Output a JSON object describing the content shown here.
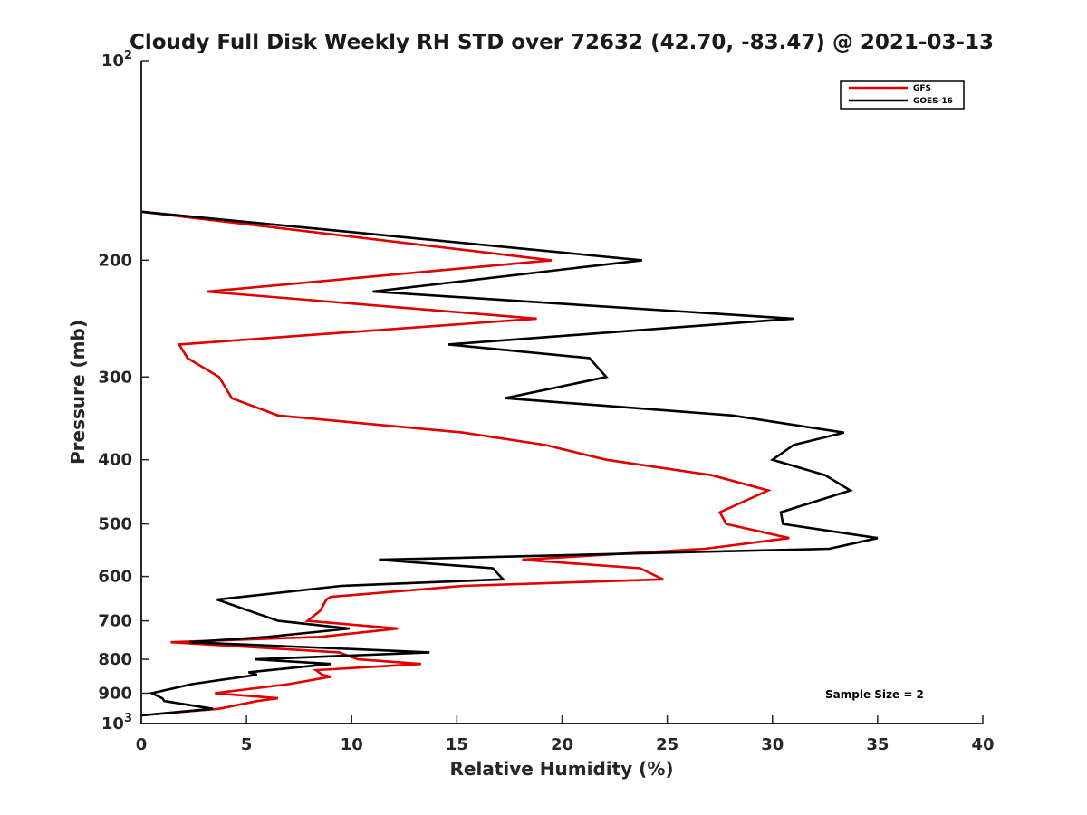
{
  "chart_data": {
    "type": "line",
    "title": "Cloudy Full Disk Weekly RH STD over 72632 (42.70, -83.47) @ 2021-03-13",
    "xlabel": "Relative Humidity (%)",
    "ylabel": "Pressure (mb)",
    "xlim": [
      0,
      40
    ],
    "ylim": [
      100,
      1000
    ],
    "y_scale": "log",
    "y_reversed": true,
    "x_ticks": [
      "0",
      "5",
      "10",
      "15",
      "20",
      "25",
      "30",
      "35",
      "40"
    ],
    "y_ticks": [
      {
        "value": 100,
        "base": "10",
        "exp": "2"
      },
      {
        "value": 200,
        "label": "200"
      },
      {
        "value": 300,
        "label": "300"
      },
      {
        "value": 400,
        "label": "400"
      },
      {
        "value": 500,
        "label": "500"
      },
      {
        "value": 600,
        "label": "600"
      },
      {
        "value": 700,
        "label": "700"
      },
      {
        "value": 800,
        "label": "800"
      },
      {
        "value": 900,
        "label": "900"
      },
      {
        "value": 1000,
        "base": "10",
        "exp": "3"
      }
    ],
    "legend_position": "top-right",
    "annotation": "Sample Size = 2",
    "series": [
      {
        "name": "GFS",
        "color": "#e00000",
        "points": [
          [
            0.0,
            169
          ],
          [
            19.5,
            200
          ],
          [
            3.1,
            223
          ],
          [
            18.8,
            245
          ],
          [
            1.8,
            268
          ],
          [
            2.2,
            281
          ],
          [
            3.7,
            300
          ],
          [
            4.3,
            323
          ],
          [
            6.5,
            343
          ],
          [
            15.3,
            364
          ],
          [
            19.2,
            380
          ],
          [
            22.1,
            400
          ],
          [
            27.1,
            422
          ],
          [
            29.8,
            445
          ],
          [
            27.5,
            480
          ],
          [
            27.8,
            500
          ],
          [
            30.8,
            525
          ],
          [
            26.8,
            545
          ],
          [
            18.1,
            566
          ],
          [
            23.7,
            583
          ],
          [
            24.8,
            606
          ],
          [
            15.3,
            620
          ],
          [
            9.0,
            644
          ],
          [
            8.8,
            650
          ],
          [
            8.5,
            676
          ],
          [
            7.9,
            700
          ],
          [
            12.2,
            719
          ],
          [
            8.5,
            740
          ],
          [
            1.4,
            754
          ],
          [
            9.4,
            781
          ],
          [
            10.3,
            800
          ],
          [
            13.3,
            813
          ],
          [
            8.3,
            831
          ],
          [
            8.6,
            844
          ],
          [
            9.0,
            850
          ],
          [
            7.0,
            872
          ],
          [
            3.5,
            900
          ],
          [
            6.5,
            916
          ],
          [
            5.5,
            925
          ],
          [
            3.7,
            950
          ],
          [
            0.0,
            972
          ]
        ]
      },
      {
        "name": "GOES-16",
        "color": "#000000",
        "points": [
          [
            0.0,
            169
          ],
          [
            23.8,
            200
          ],
          [
            11.0,
            223
          ],
          [
            31.0,
            245
          ],
          [
            14.6,
            268
          ],
          [
            21.3,
            281
          ],
          [
            22.1,
            300
          ],
          [
            17.3,
            323
          ],
          [
            28.1,
            343
          ],
          [
            33.4,
            364
          ],
          [
            31.0,
            380
          ],
          [
            30.0,
            400
          ],
          [
            32.5,
            422
          ],
          [
            33.7,
            445
          ],
          [
            30.4,
            480
          ],
          [
            30.5,
            500
          ],
          [
            35.0,
            525
          ],
          [
            32.7,
            545
          ],
          [
            11.3,
            566
          ],
          [
            16.7,
            583
          ],
          [
            17.2,
            606
          ],
          [
            9.5,
            620
          ],
          [
            3.6,
            650
          ],
          [
            6.5,
            700
          ],
          [
            9.9,
            719
          ],
          [
            6.0,
            740
          ],
          [
            2.3,
            754
          ],
          [
            13.7,
            781
          ],
          [
            5.4,
            800
          ],
          [
            9.0,
            813
          ],
          [
            5.1,
            837
          ],
          [
            5.5,
            844
          ],
          [
            2.4,
            872
          ],
          [
            0.5,
            900
          ],
          [
            1.0,
            916
          ],
          [
            1.1,
            925
          ],
          [
            3.4,
            950
          ],
          [
            0.0,
            972
          ]
        ]
      }
    ]
  }
}
